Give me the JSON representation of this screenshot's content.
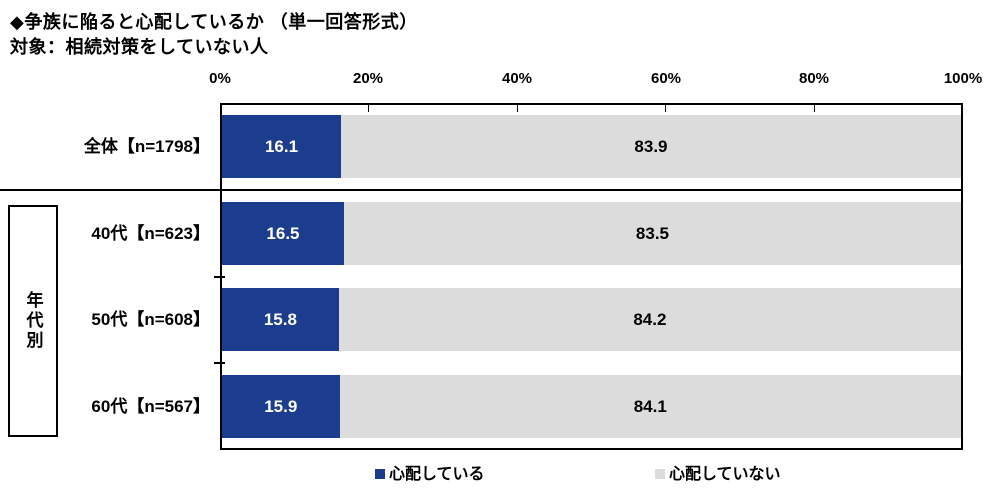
{
  "title": "◆争族に陥ると心配しているか （単一回答形式）",
  "subtitle": "対象：相続対策をしていない人",
  "group_label": "年代別",
  "axis": {
    "ticks": [
      "0%",
      "20%",
      "40%",
      "60%",
      "80%",
      "100%"
    ],
    "min": 0,
    "max": 100
  },
  "legend": [
    {
      "label": "心配している",
      "color": "#1C3D8E"
    },
    {
      "label": "心配していない",
      "color": "#DCDCDC"
    }
  ],
  "colors": {
    "bar_blue": "#1C3D8E",
    "bar_gray": "#DCDCDC",
    "border": "#000000",
    "blue_value_text": "#FFFFFF",
    "gray_value_text": "#000000"
  },
  "chart_data": {
    "type": "bar",
    "orientation": "horizontal",
    "stacked": true,
    "title": "◆争族に陥ると心配しているか （単一回答形式）",
    "subtitle": "対象：相続対策をしていない人",
    "categories": [
      "全体【n=1798】",
      "40代【n=623】",
      "50代【n=608】",
      "60代【n=567】"
    ],
    "series": [
      {
        "name": "心配している",
        "color": "#1C3D8E",
        "text_color": "#FFFFFF",
        "values": [
          16.1,
          16.5,
          15.8,
          15.9
        ]
      },
      {
        "name": "心配していない",
        "color": "#DCDCDC",
        "text_color": "#000000",
        "values": [
          83.9,
          83.5,
          84.2,
          84.1
        ]
      }
    ],
    "xlim": [
      0,
      100
    ],
    "x_tick_labels": [
      "0%",
      "20%",
      "40%",
      "60%",
      "80%",
      "100%"
    ],
    "legend_position": "bottom",
    "grid": false,
    "group_annotation": "年代別"
  }
}
